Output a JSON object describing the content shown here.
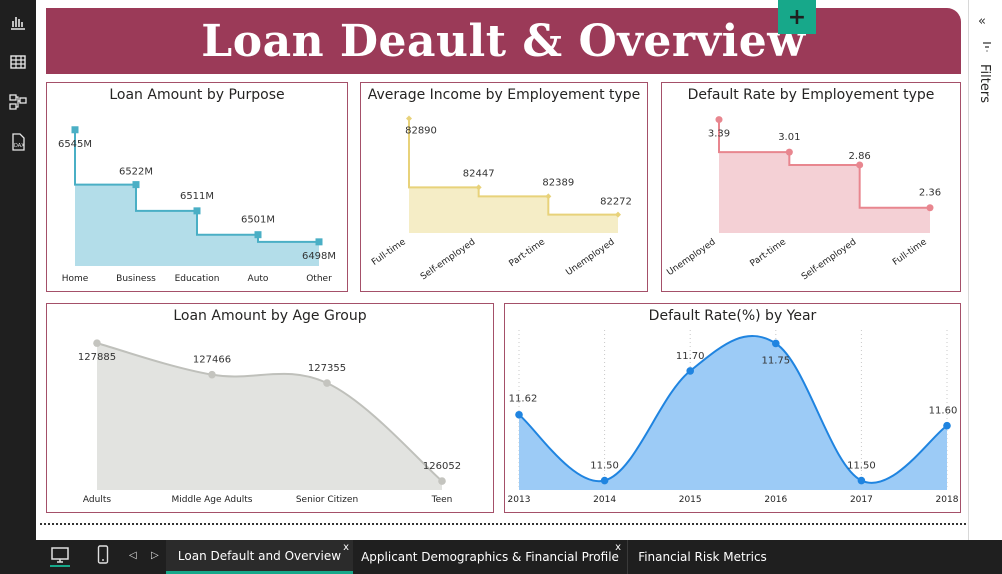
{
  "report": {
    "title": "Loan Deault & Overview"
  },
  "left_rail": {
    "icons": [
      "report-view-icon",
      "table-view-icon",
      "model-view-icon",
      "dax-query-icon"
    ]
  },
  "filters": {
    "label": "Filters",
    "collapse_glyph": "«"
  },
  "bottom_bar": {
    "tabs": [
      {
        "label": "Loan Default and Overview",
        "active": true,
        "close": "x"
      },
      {
        "label": "Applicant Demographics & Financial Profile",
        "active": false,
        "close": "x"
      },
      {
        "label": "Financial Risk Metrics",
        "active": false
      }
    ],
    "add_tab": "+",
    "prev": "◁",
    "next": "▷"
  },
  "colors": {
    "banner": "#9b3a58",
    "card_border": "#a45069",
    "purpose": "#4aafc5",
    "income": "#e8d27a",
    "employment_default": "#e8868f",
    "age": "#c4c4bf",
    "year": "#1f84e0",
    "active_tab_underline": "#17a88a"
  },
  "chart_data": [
    {
      "type": "area",
      "title": "Loan Amount by Purpose",
      "categories": [
        "Home",
        "Business",
        "Education",
        "Auto",
        "Other"
      ],
      "values": [
        6545,
        6522,
        6511,
        6501,
        6498
      ],
      "labels": [
        "6545M",
        "6522M",
        "6511M",
        "6501M",
        "6498M"
      ],
      "unit": "M",
      "step": true
    },
    {
      "type": "area",
      "title": "Average Income by Employement type",
      "categories": [
        "Full-time",
        "Self-employed",
        "Part-time",
        "Unemployed"
      ],
      "values": [
        82890,
        82447,
        82389,
        82272
      ],
      "labels": [
        "82890",
        "82447",
        "82389",
        "82272"
      ],
      "step": true
    },
    {
      "type": "area",
      "title": "Default Rate by Employement type",
      "categories": [
        "Unemployed",
        "Part-time",
        "Self-employed",
        "Full-time"
      ],
      "values": [
        3.39,
        3.01,
        2.86,
        2.36
      ],
      "labels": [
        "3.39",
        "3.01",
        "2.86",
        "2.36"
      ],
      "step": true
    },
    {
      "type": "area",
      "title": "Loan Amount by Age Group",
      "categories": [
        "Adults",
        "Middle Age Adults",
        "Senior Citizen",
        "Teen"
      ],
      "values": [
        127885,
        127466,
        127355,
        126052
      ],
      "labels": [
        "127885",
        "127466",
        "127355",
        "126052"
      ]
    },
    {
      "type": "area",
      "title": "Default Rate(%) by Year",
      "categories": [
        "2013",
        "2014",
        "2015",
        "2016",
        "2017",
        "2018"
      ],
      "values": [
        11.62,
        11.5,
        11.7,
        11.75,
        11.5,
        11.6
      ],
      "labels": [
        "11.62",
        "11.50",
        "11.70",
        "11.75",
        "11.50",
        "11.60"
      ],
      "grid": "vertical dotted"
    }
  ]
}
